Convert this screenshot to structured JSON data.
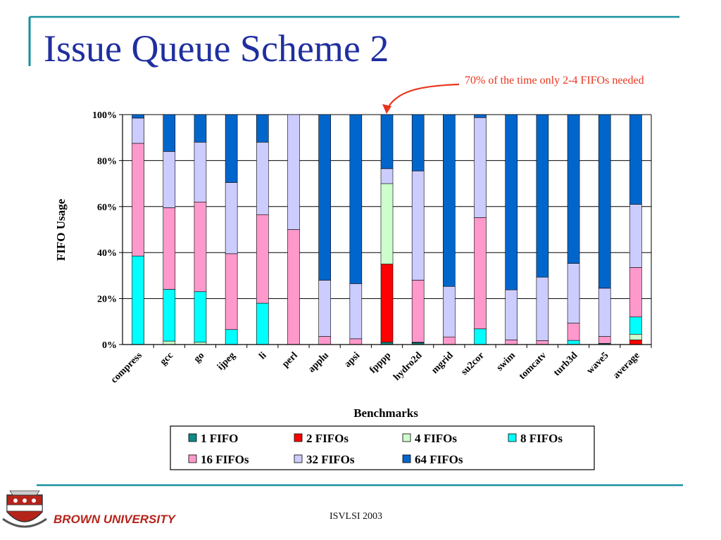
{
  "slide": {
    "title": "Issue Queue Scheme 2",
    "annotation": "70% of the time only 2-4 FIFOs needed",
    "footer": "ISVLSI 2003",
    "university": "BROWN UNIVERSITY"
  },
  "colors": {
    "title": "#1f2f9f",
    "rule": "#16909e",
    "annotation": "#e8341c",
    "university": "#b5241b"
  },
  "chart_data": {
    "type": "bar",
    "stacked": true,
    "percent": true,
    "title": "",
    "xlabel": "Benchmarks",
    "ylabel": "FIFO Usage",
    "ylim": [
      0,
      100
    ],
    "yticks": [
      "0%",
      "20%",
      "40%",
      "60%",
      "80%",
      "100%"
    ],
    "categories": [
      "compress",
      "gcc",
      "go",
      "ijpeg",
      "li",
      "perl",
      "applu",
      "apsi",
      "fpppp",
      "hydro2d",
      "mgrid",
      "su2cor",
      "swim",
      "tomcatv",
      "turb3d",
      "wave5",
      "average"
    ],
    "series": [
      {
        "name": "1 FIFO",
        "color": "#0d8a8a",
        "values": [
          0,
          0,
          0,
          0,
          0,
          0,
          0,
          0,
          1,
          0.8,
          0,
          0,
          0,
          0,
          0,
          0.5,
          0
        ]
      },
      {
        "name": "2 FIFOs",
        "color": "#ff0000",
        "values": [
          0,
          0,
          0,
          0,
          0,
          0,
          0,
          0,
          34,
          0,
          0,
          0,
          0,
          0,
          0,
          0,
          2
        ]
      },
      {
        "name": "4 FIFOs",
        "color": "#ccffcc",
        "values": [
          0,
          1.5,
          1,
          0,
          0,
          0,
          0,
          0,
          35,
          0,
          0,
          0,
          0,
          0,
          0,
          0,
          2.5
        ]
      },
      {
        "name": "8 FIFOs",
        "color": "#00ffff",
        "values": [
          38.5,
          22.5,
          22,
          6.5,
          18,
          0,
          0,
          0,
          0,
          0.2,
          0,
          6.8,
          0,
          0,
          1.8,
          0,
          7.5
        ]
      },
      {
        "name": "16 FIFOs",
        "color": "#ff99cc",
        "values": [
          49,
          35.5,
          39,
          33,
          38.5,
          50,
          3.5,
          2.5,
          0,
          27,
          3.3,
          48.4,
          2,
          1.7,
          7.5,
          3,
          21.5
        ]
      },
      {
        "name": "32 FIFOs",
        "color": "#ccccff",
        "values": [
          11,
          24.5,
          26,
          31,
          31.5,
          50,
          24.5,
          24,
          6.5,
          47.5,
          22,
          43.5,
          21.8,
          27.6,
          26,
          21,
          27.5
        ]
      },
      {
        "name": "64 FIFOs",
        "color": "#0066cc",
        "values": [
          1.5,
          16,
          12,
          29.5,
          12,
          0,
          72,
          73.5,
          23.5,
          24.5,
          74.7,
          1.3,
          76.2,
          70.7,
          64.7,
          75.5,
          39
        ]
      }
    ],
    "legend": {
      "position": "bottom",
      "columns": 4
    }
  }
}
